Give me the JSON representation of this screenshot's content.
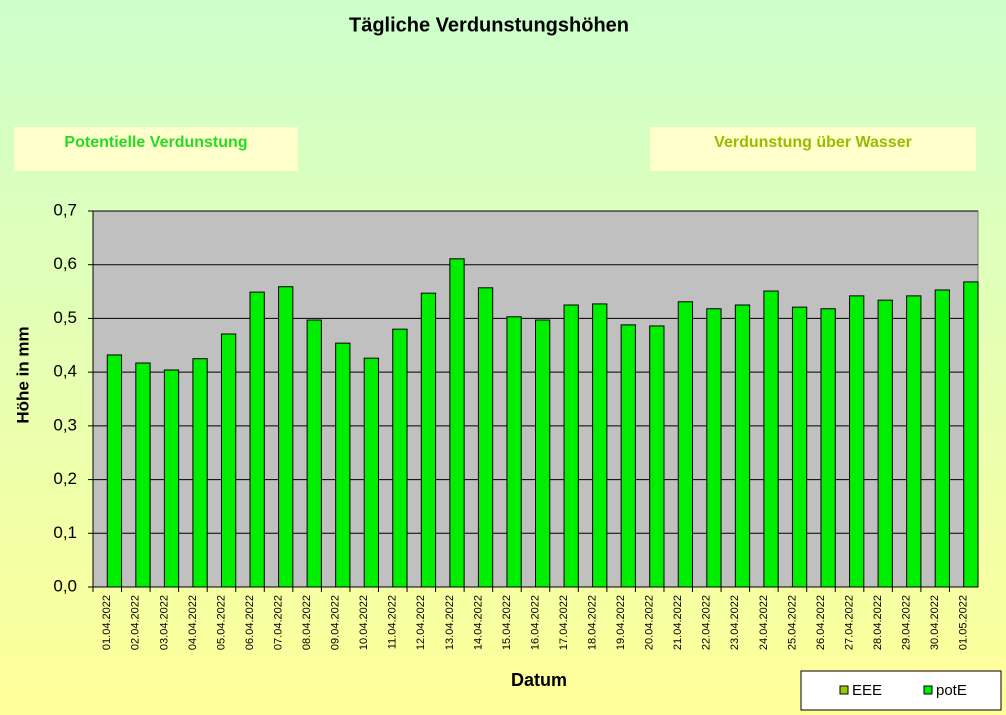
{
  "chart_data": {
    "type": "bar",
    "title": "Tägliche Verdunstungshöhen",
    "annotations": [
      "Potentielle Verdunstung",
      "Verdunstung über Wasser"
    ],
    "xlabel": "Datum",
    "ylabel": "Höhe in mm",
    "categories": [
      "01.04.2022",
      "02.04.2022",
      "03.04.2022",
      "04.04.2022",
      "05.04.2022",
      "06.04.2022",
      "07.04.2022",
      "08.04.2022",
      "09.04.2022",
      "10.04.2022",
      "11.04.2022",
      "12.04.2022",
      "13.04.2022",
      "14.04.2022",
      "15.04.2022",
      "16.04.2022",
      "17.04.2022",
      "18.04.2022",
      "19.04.2022",
      "20.04.2022",
      "21.04.2022",
      "22.04.2022",
      "23.04.2022",
      "24.04.2022",
      "25.04.2022",
      "26.04.2022",
      "27.04.2022",
      "28.04.2022",
      "29.04.2022",
      "30.04.2022",
      "01.05.2022"
    ],
    "series": [
      {
        "name": "EEE",
        "color": "#99cc00",
        "values": [
          null,
          null,
          null,
          null,
          null,
          null,
          null,
          null,
          null,
          null,
          null,
          null,
          null,
          null,
          null,
          null,
          null,
          null,
          null,
          null,
          null,
          null,
          null,
          null,
          null,
          null,
          null,
          null,
          null,
          null,
          null
        ]
      },
      {
        "name": "potE",
        "color": "#00ee00",
        "values": [
          0.432,
          0.417,
          0.404,
          0.425,
          0.471,
          0.549,
          0.559,
          0.497,
          0.454,
          0.426,
          0.48,
          0.547,
          0.611,
          0.557,
          0.503,
          0.497,
          0.525,
          0.527,
          0.488,
          0.486,
          0.531,
          0.518,
          0.525,
          0.551,
          0.521,
          0.518,
          0.542,
          0.534,
          0.542,
          0.553,
          0.568
        ]
      }
    ],
    "ylim": [
      0,
      0.7
    ],
    "yticks": [
      {
        "value": 0,
        "label": "0,0"
      },
      {
        "value": 0.1,
        "label": "0,1"
      },
      {
        "value": 0.2,
        "label": "0,2"
      },
      {
        "value": 0.3,
        "label": "0,3"
      },
      {
        "value": 0.4,
        "label": "0,4"
      },
      {
        "value": 0.5,
        "label": "0,5"
      },
      {
        "value": 0.6,
        "label": "0,6"
      },
      {
        "value": 0.7,
        "label": "0,7"
      }
    ],
    "grid": true
  }
}
